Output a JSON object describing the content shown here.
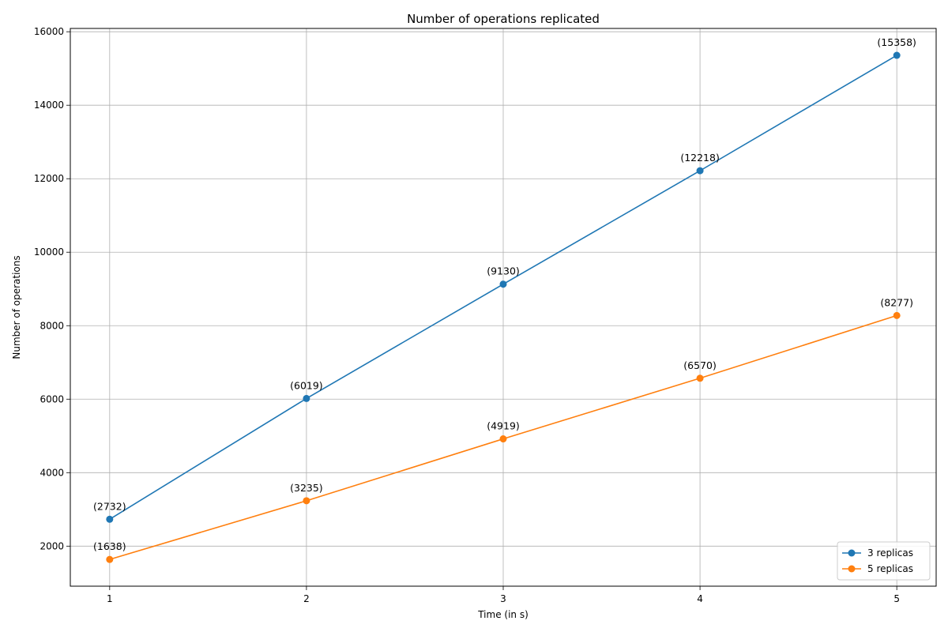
{
  "chart_data": {
    "type": "line",
    "title": "Number of operations replicated",
    "xlabel": "Time (in s)",
    "ylabel": "Number of operations",
    "x": [
      1,
      2,
      3,
      4,
      5
    ],
    "xticks": [
      "1",
      "2",
      "3",
      "4",
      "5"
    ],
    "yticks": [
      "2000",
      "4000",
      "6000",
      "8000",
      "10000",
      "12000",
      "14000",
      "16000"
    ],
    "xlim": [
      0.8,
      5.2
    ],
    "ylim": [
      910,
      16090
    ],
    "grid": true,
    "legend_position": "bottom-right",
    "series": [
      {
        "name": "3 replicas",
        "color": "#1f77b4",
        "values": [
          2732,
          6019,
          9130,
          12218,
          15358
        ],
        "labels": [
          "(2732)",
          "(6019)",
          "(9130)",
          "(12218)",
          "(15358)"
        ]
      },
      {
        "name": "5 replicas",
        "color": "#ff7f0e",
        "values": [
          1638,
          3235,
          4919,
          6570,
          8277
        ],
        "labels": [
          "(1638)",
          "(3235)",
          "(4919)",
          "(6570)",
          "(8277)"
        ]
      }
    ]
  }
}
